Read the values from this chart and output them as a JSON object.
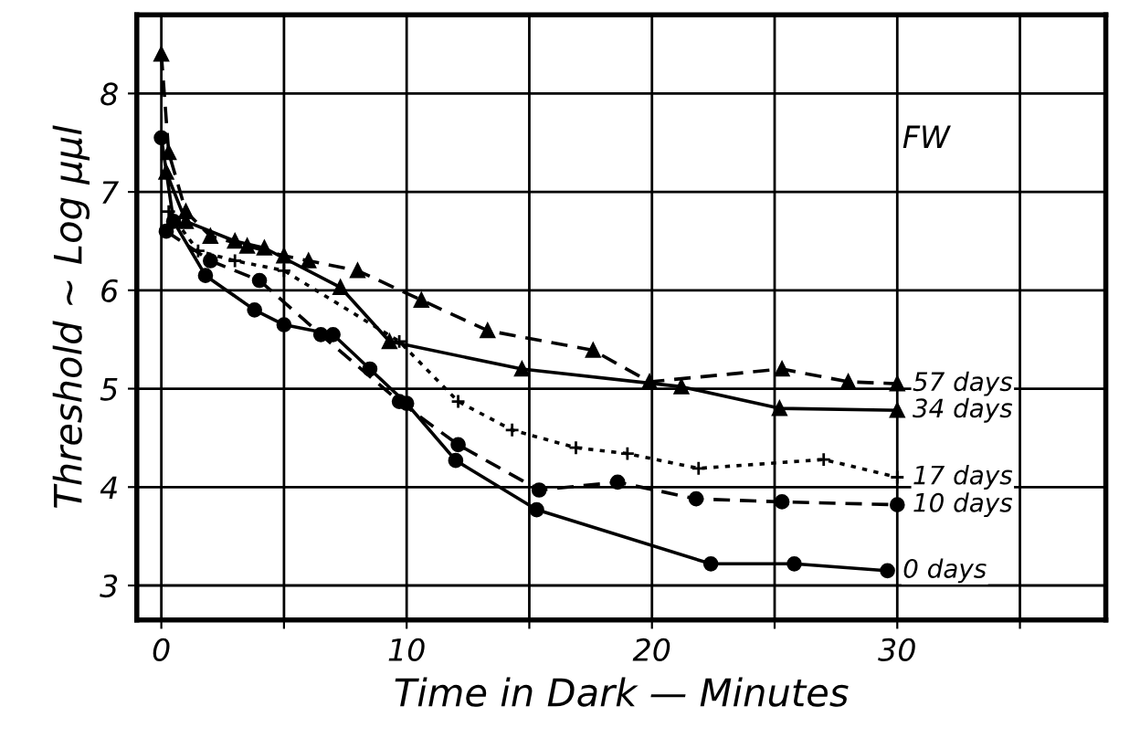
{
  "chart_data": {
    "type": "line",
    "xlabel": "Time in Dark — Minutes",
    "ylabel": "Threshold ~ Log μμl",
    "xlim": [
      -1,
      38.5
    ],
    "ylim": [
      2.65,
      8.8
    ],
    "xticks": [
      0,
      {
        "value": 5,
        "label": null
      },
      10,
      {
        "value": 15,
        "label": null
      },
      20,
      {
        "value": 25,
        "label": null
      },
      30,
      {
        "value": 35,
        "label": null
      }
    ],
    "yticks": [
      3,
      4,
      5,
      6,
      7,
      8
    ],
    "grid": true,
    "legend": false,
    "annotations": [
      "FW"
    ],
    "series": [
      {
        "name": "57 days",
        "color": "#000000",
        "marker": "triangle",
        "line_style": "dashed",
        "x": [
          0,
          0.3,
          1,
          2,
          3.5,
          5,
          6,
          8,
          10.6,
          13.3,
          17.6,
          19.9,
          25.3,
          28,
          30
        ],
        "values": [
          8.4,
          7.4,
          6.8,
          6.55,
          6.45,
          6.35,
          6.3,
          6.2,
          5.9,
          5.59,
          5.39,
          5.07,
          5.2,
          5.07,
          5.05
        ]
      },
      {
        "name": "34 days",
        "color": "#000000",
        "marker": "triangle",
        "line_style": "solid",
        "x": [
          0.2,
          1,
          3,
          4.2,
          7.3,
          9.3,
          14.7,
          21.2,
          25.2,
          30
        ],
        "values": [
          7.2,
          6.7,
          6.5,
          6.43,
          6.03,
          5.48,
          5.2,
          5.02,
          4.8,
          4.78
        ]
      },
      {
        "name": "17 days",
        "color": "#000000",
        "marker": "cross",
        "line_style": "dotted",
        "x": [
          0.3,
          1.5,
          3,
          5,
          9.7,
          12.1,
          14.3,
          16.9,
          19,
          21.9,
          27,
          30
        ],
        "values": [
          6.8,
          6.4,
          6.3,
          6.2,
          5.48,
          4.87,
          4.58,
          4.4,
          4.34,
          4.19,
          4.28,
          4.1
        ]
      },
      {
        "name": "10 days",
        "color": "#000000",
        "marker": "circle",
        "line_style": "dashed",
        "x": [
          0.2,
          2,
          4,
          6.5,
          9.7,
          12.1,
          15.4,
          18.6,
          21.8,
          25.3,
          30
        ],
        "values": [
          6.6,
          6.3,
          6.1,
          5.55,
          4.87,
          4.43,
          3.97,
          4.05,
          3.88,
          3.85,
          3.82
        ]
      },
      {
        "name": "0 days",
        "color": "#000000",
        "marker": "circle",
        "line_style": "solid",
        "x": [
          0,
          0.5,
          1.8,
          3.8,
          5,
          7,
          8.5,
          10,
          12,
          15.3,
          22.4,
          25.8,
          29.6
        ],
        "values": [
          7.55,
          6.7,
          6.15,
          5.8,
          5.65,
          5.55,
          5.2,
          4.85,
          4.27,
          3.77,
          3.22,
          3.22,
          3.15
        ]
      }
    ]
  }
}
